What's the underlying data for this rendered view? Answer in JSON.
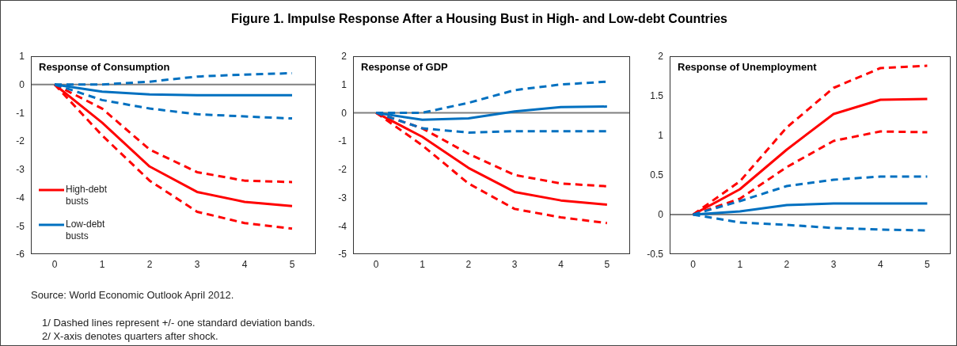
{
  "chart_data": [
    {
      "type": "line",
      "title": "Figure 1. Impulse Response After a Housing Bust in High- and Low-debt Countries",
      "subtitle": "Response of Consumption",
      "categories": [
        "0",
        "1",
        "2",
        "3",
        "4",
        "5"
      ],
      "ylim": [
        -6,
        1
      ],
      "yticks": [
        -6,
        -5,
        -4,
        -3,
        -2,
        -1,
        0,
        1
      ],
      "grid": false,
      "legend": "bottom left",
      "series": [
        {
          "name": "High-debt busts",
          "color": "#ff0000",
          "values": [
            0,
            -1.35,
            -2.9,
            -3.8,
            -4.15,
            -4.3
          ]
        },
        {
          "name": "Low-debt busts",
          "color": "#0070c0",
          "values": [
            0,
            -0.25,
            -0.35,
            -0.38,
            -0.38,
            -0.38
          ]
        },
        {
          "color": "#ff0000",
          "line_style": "dashed",
          "values": [
            0,
            -0.85,
            -2.3,
            -3.1,
            -3.4,
            -3.45
          ]
        },
        {
          "color": "#ff0000",
          "line_style": "dashed",
          "values": [
            0,
            -1.8,
            -3.4,
            -4.5,
            -4.9,
            -5.1
          ]
        },
        {
          "color": "#0070c0",
          "line_style": "dashed",
          "values": [
            0,
            0.0,
            0.1,
            0.28,
            0.35,
            0.4
          ]
        },
        {
          "color": "#0070c0",
          "line_style": "dashed",
          "values": [
            0,
            -0.55,
            -0.85,
            -1.05,
            -1.13,
            -1.2
          ]
        }
      ],
      "ref_lines": [
        {
          "axis": "y",
          "value": 0,
          "color": "#808080"
        }
      ],
      "annotations": [
        "Source: World Economic Outlook April 2012.",
        "1/ Dashed lines represent +/- one standard deviation bands.",
        "2/ X-axis denotes quarters after shock."
      ]
    },
    {
      "type": "line",
      "subtitle": "Response of GDP",
      "categories": [
        "0",
        "1",
        "2",
        "3",
        "4",
        "5"
      ],
      "ylim": [
        -5,
        2
      ],
      "yticks": [
        -5,
        -4,
        -3,
        -2,
        -1,
        0,
        1,
        2
      ],
      "grid": false,
      "series": [
        {
          "color": "#ff0000",
          "values": [
            0,
            -0.85,
            -1.95,
            -2.8,
            -3.1,
            -3.25
          ]
        },
        {
          "color": "#0070c0",
          "values": [
            0,
            -0.25,
            -0.2,
            0.05,
            0.2,
            0.22
          ]
        },
        {
          "color": "#ff0000",
          "line_style": "dashed",
          "values": [
            0,
            -0.55,
            -1.45,
            -2.2,
            -2.5,
            -2.6
          ]
        },
        {
          "color": "#ff0000",
          "line_style": "dashed",
          "values": [
            0,
            -1.15,
            -2.5,
            -3.4,
            -3.7,
            -3.9
          ]
        },
        {
          "color": "#0070c0",
          "line_style": "dashed",
          "values": [
            0,
            0.0,
            0.35,
            0.8,
            1.0,
            1.1
          ]
        },
        {
          "color": "#0070c0",
          "line_style": "dashed",
          "values": [
            0,
            -0.55,
            -0.7,
            -0.65,
            -0.65,
            -0.65
          ]
        }
      ],
      "ref_lines": [
        {
          "axis": "y",
          "value": 0,
          "color": "#808080"
        }
      ]
    },
    {
      "type": "line",
      "subtitle": "Response of Unemployment",
      "categories": [
        "0",
        "1",
        "2",
        "3",
        "4",
        "5"
      ],
      "ylim": [
        -0.5,
        2
      ],
      "yticks": [
        -0.5,
        0,
        0.5,
        1,
        1.5,
        2
      ],
      "grid": false,
      "series": [
        {
          "color": "#ff0000",
          "values": [
            0,
            0.32,
            0.82,
            1.27,
            1.45,
            1.46
          ]
        },
        {
          "color": "#0070c0",
          "values": [
            0,
            0.04,
            0.12,
            0.14,
            0.14,
            0.14
          ]
        },
        {
          "color": "#ff0000",
          "line_style": "dashed",
          "values": [
            0,
            0.42,
            1.1,
            1.6,
            1.85,
            1.88
          ]
        },
        {
          "color": "#ff0000",
          "line_style": "dashed",
          "values": [
            0,
            0.2,
            0.6,
            0.93,
            1.05,
            1.04
          ]
        },
        {
          "color": "#0070c0",
          "line_style": "dashed",
          "values": [
            0,
            0.17,
            0.36,
            0.44,
            0.48,
            0.48
          ]
        },
        {
          "color": "#0070c0",
          "line_style": "dashed",
          "values": [
            0,
            -0.1,
            -0.13,
            -0.17,
            -0.19,
            -0.2
          ]
        }
      ],
      "ref_lines": [
        {
          "axis": "y",
          "value": 0,
          "color": "#808080"
        }
      ]
    }
  ]
}
